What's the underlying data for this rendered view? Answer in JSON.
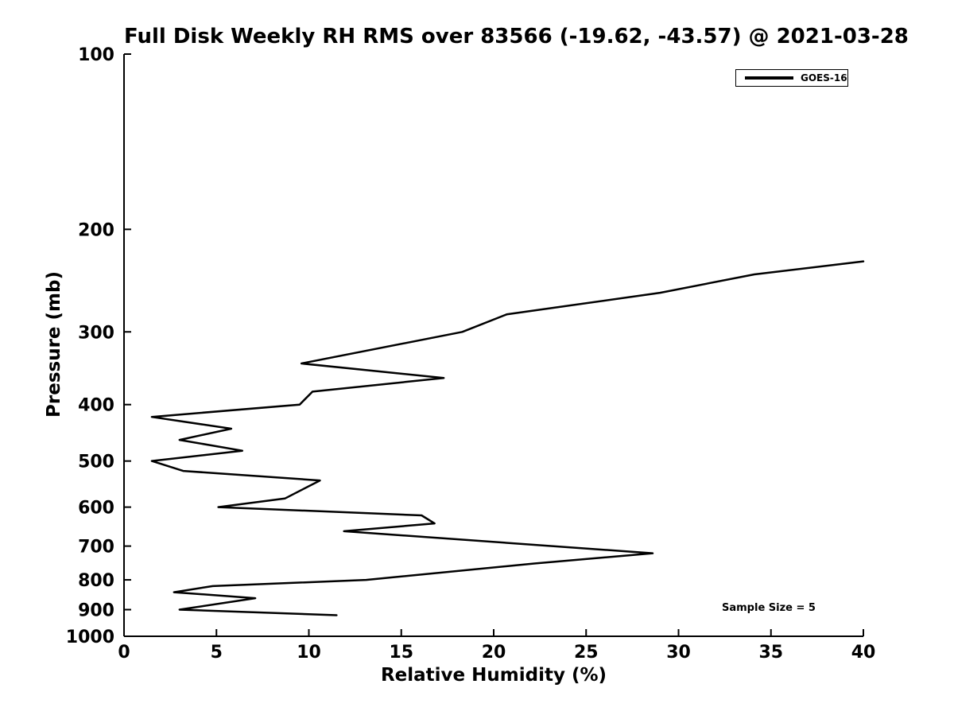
{
  "figure": {
    "background_color": "#ffffff",
    "foreground_color": "#000000"
  },
  "chart_data": {
    "type": "line",
    "title": "Full Disk Weekly RH RMS over 83566 (-19.62, -43.57) @ 2021-03-28",
    "station": {
      "id": "83566",
      "lat": -19.62,
      "lon": -43.57
    },
    "date": "2021-03-28",
    "xlabel": "Relative Humidity (%)",
    "ylabel": "Pressure (mb)",
    "xlim": [
      0,
      40
    ],
    "ylim_pressure_mb": [
      1000,
      100
    ],
    "y_scale": "log",
    "y_axis_inverted": true,
    "grid": false,
    "x_ticks": [
      0,
      5,
      10,
      15,
      20,
      25,
      30,
      35,
      40
    ],
    "y_ticks": [
      100,
      200,
      300,
      400,
      500,
      600,
      700,
      800,
      900,
      1000
    ],
    "legend": {
      "position": "upper right",
      "entries": [
        {
          "label": "GOES-16",
          "color": "#000000",
          "line_width": 2.5
        }
      ]
    },
    "annotation": {
      "text": "Sample Size = 5"
    },
    "series": [
      {
        "name": "GOES-16",
        "color": "#000000",
        "rh_percent": [
          40.0,
          34.1,
          29.0,
          20.7,
          18.3,
          9.6,
          17.3,
          10.2,
          9.5,
          1.5,
          5.8,
          3.0,
          6.4,
          1.5,
          3.2,
          10.6,
          8.7,
          5.1,
          16.1,
          16.8,
          11.9,
          28.6,
          22.2,
          13.1,
          4.8,
          2.7,
          7.1,
          3.0,
          11.5
        ],
        "pressure_mb": [
          227,
          239,
          257,
          280,
          300,
          340,
          360,
          380,
          400,
          420,
          440,
          460,
          480,
          500,
          520,
          540,
          580,
          600,
          620,
          640,
          660,
          720,
          750,
          800,
          820,
          840,
          860,
          900,
          920
        ]
      }
    ]
  }
}
